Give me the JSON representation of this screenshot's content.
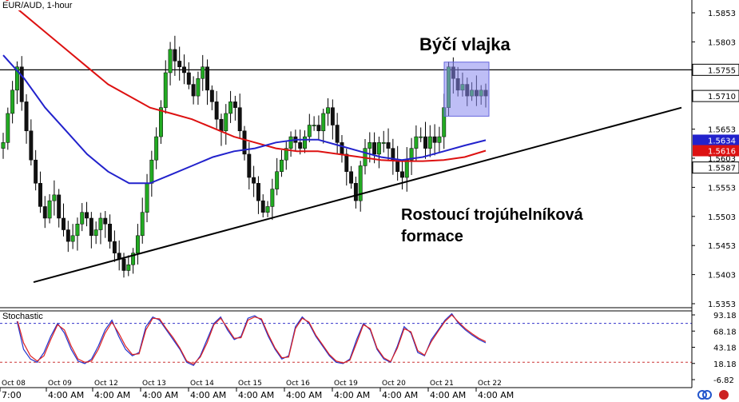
{
  "window": {
    "symbol_label": "EUR/AUD, 1-hour",
    "indicator_label": "Stochastic"
  },
  "annotations": {
    "bull_flag": "Býčí vlajka",
    "ascending_triangle_line1": "Rostoucí trojúhelníková",
    "ascending_triangle_line2": "formace"
  },
  "colors": {
    "sma_fast": "#2222cc",
    "sma_slow": "#dd1111",
    "up_candle": "#22aa22",
    "down_candle": "#111111",
    "flag_box": "#8888ee",
    "stoch_k": "#2233cc",
    "stoch_d": "#dd2222"
  },
  "chart_data": [
    {
      "type": "candlestick",
      "title": "EUR/AUD, 1-hour",
      "y_ticks": [
        "1.5853",
        "1.5803",
        "1.5755",
        "1.5710",
        "1.5653",
        "1.5603",
        "1.5553",
        "1.5503",
        "1.5453",
        "1.5403",
        "1.5353"
      ],
      "price_tags": [
        {
          "label": "1.5755",
          "value": 1.5755,
          "color": "#000000"
        },
        {
          "label": "1.5710",
          "value": 1.571,
          "color": "#000000"
        },
        {
          "label": "1.5634",
          "value": 1.5634,
          "color": "#2222cc"
        },
        {
          "label": "1.5616",
          "value": 1.5616,
          "color": "#dd1111"
        },
        {
          "label": "1.5587",
          "value": 1.5587,
          "color": "#000000"
        }
      ],
      "x_date_labels": [
        "Oct 08",
        "Oct 09",
        "Oct 12",
        "Oct 13",
        "Oct 14",
        "Oct 15",
        "Oct 16",
        "Oct 19",
        "Oct 20",
        "Oct 21",
        "Oct 22"
      ],
      "x_time_labels": [
        "7:00",
        "4:00 AM",
        "4:00 AM",
        "4:00 AM",
        "4:00 AM",
        "4:00 AM",
        "4:00 AM",
        "4:00 AM",
        "4:00 AM",
        "4:00 AM",
        "4:00 AM"
      ],
      "resistance_level": 1.5755,
      "closes": [
        1.563,
        1.568,
        1.572,
        1.576,
        1.57,
        1.565,
        1.56,
        1.556,
        1.552,
        1.55,
        1.553,
        1.554,
        1.55,
        1.548,
        1.546,
        1.547,
        1.549,
        1.551,
        1.55,
        1.547,
        1.548,
        1.55,
        1.549,
        1.546,
        1.544,
        1.543,
        1.541,
        1.542,
        1.544,
        1.547,
        1.551,
        1.556,
        1.56,
        1.564,
        1.569,
        1.575,
        1.579,
        1.577,
        1.576,
        1.575,
        1.573,
        1.571,
        1.574,
        1.576,
        1.572,
        1.57,
        1.567,
        1.565,
        1.568,
        1.57,
        1.569,
        1.565,
        1.561,
        1.557,
        1.556,
        1.553,
        1.551,
        1.552,
        1.555,
        1.558,
        1.56,
        1.562,
        1.564,
        1.563,
        1.562,
        1.564,
        1.566,
        1.566,
        1.565,
        1.568,
        1.569,
        1.566,
        1.563,
        1.561,
        1.558,
        1.556,
        1.553,
        1.559,
        1.562,
        1.563,
        1.561,
        1.563,
        1.563,
        1.562,
        1.56,
        1.558,
        1.557,
        1.56,
        1.562,
        1.564,
        1.564,
        1.562,
        1.564,
        1.563,
        1.564,
        1.569,
        1.576,
        1.574,
        1.572,
        1.573,
        1.571,
        1.572,
        1.571,
        1.572,
        1.571
      ],
      "sma_fast": {
        "name": "",
        "values": [
          1.578,
          1.574,
          1.569,
          1.565,
          1.561,
          1.558,
          1.556,
          1.556,
          1.5575,
          1.559,
          1.5605,
          1.5615,
          1.562,
          1.563,
          1.5635,
          1.5635,
          1.5625,
          1.5615,
          1.5605,
          1.56,
          1.5605,
          1.5615,
          1.5625,
          1.5634
        ]
      },
      "sma_slow": {
        "name": "",
        "values": [
          1.588,
          1.585,
          1.582,
          1.579,
          1.576,
          1.573,
          1.571,
          1.569,
          1.568,
          1.567,
          1.5655,
          1.564,
          1.563,
          1.562,
          1.5615,
          1.5615,
          1.561,
          1.5605,
          1.56,
          1.5598,
          1.5598,
          1.56,
          1.5605,
          1.5616
        ]
      },
      "trendline": {
        "from": 1.539,
        "to": 1.569
      },
      "flag": {
        "high": 1.576,
        "low": 1.57
      }
    },
    {
      "type": "line",
      "title": "Stochastic",
      "y_ticks": [
        "93.18",
        "68.18",
        "43.18",
        "18.18",
        "-6.82"
      ],
      "levels": [
        80,
        20
      ],
      "series": [
        {
          "name": "",
          "values": [
            88,
            92,
            85,
            40,
            25,
            20,
            35,
            60,
            80,
            65,
            40,
            22,
            18,
            25,
            45,
            70,
            85,
            60,
            40,
            30,
            35,
            75,
            90,
            85,
            70,
            55,
            40,
            20,
            15,
            30,
            55,
            80,
            90,
            70,
            55,
            60,
            88,
            92,
            85,
            60,
            40,
            25,
            30,
            75,
            90,
            80,
            60,
            45,
            30,
            20,
            18,
            25,
            55,
            80,
            70,
            40,
            25,
            20,
            45,
            75,
            65,
            35,
            30,
            55,
            70,
            85,
            95,
            80,
            70,
            62,
            55,
            50
          ]
        },
        {
          "name": "",
          "values": [
            85,
            90,
            88,
            50,
            30,
            22,
            30,
            55,
            78,
            70,
            45,
            25,
            20,
            22,
            40,
            65,
            82,
            65,
            45,
            32,
            33,
            70,
            88,
            87,
            72,
            58,
            42,
            22,
            17,
            28,
            50,
            78,
            88,
            73,
            57,
            58,
            85,
            90,
            87,
            63,
            42,
            27,
            28,
            72,
            88,
            82,
            62,
            47,
            32,
            22,
            19,
            23,
            50,
            78,
            72,
            42,
            27,
            21,
            42,
            72,
            67,
            38,
            31,
            52,
            68,
            83,
            93,
            82,
            72,
            64,
            57,
            52
          ]
        }
      ]
    }
  ]
}
